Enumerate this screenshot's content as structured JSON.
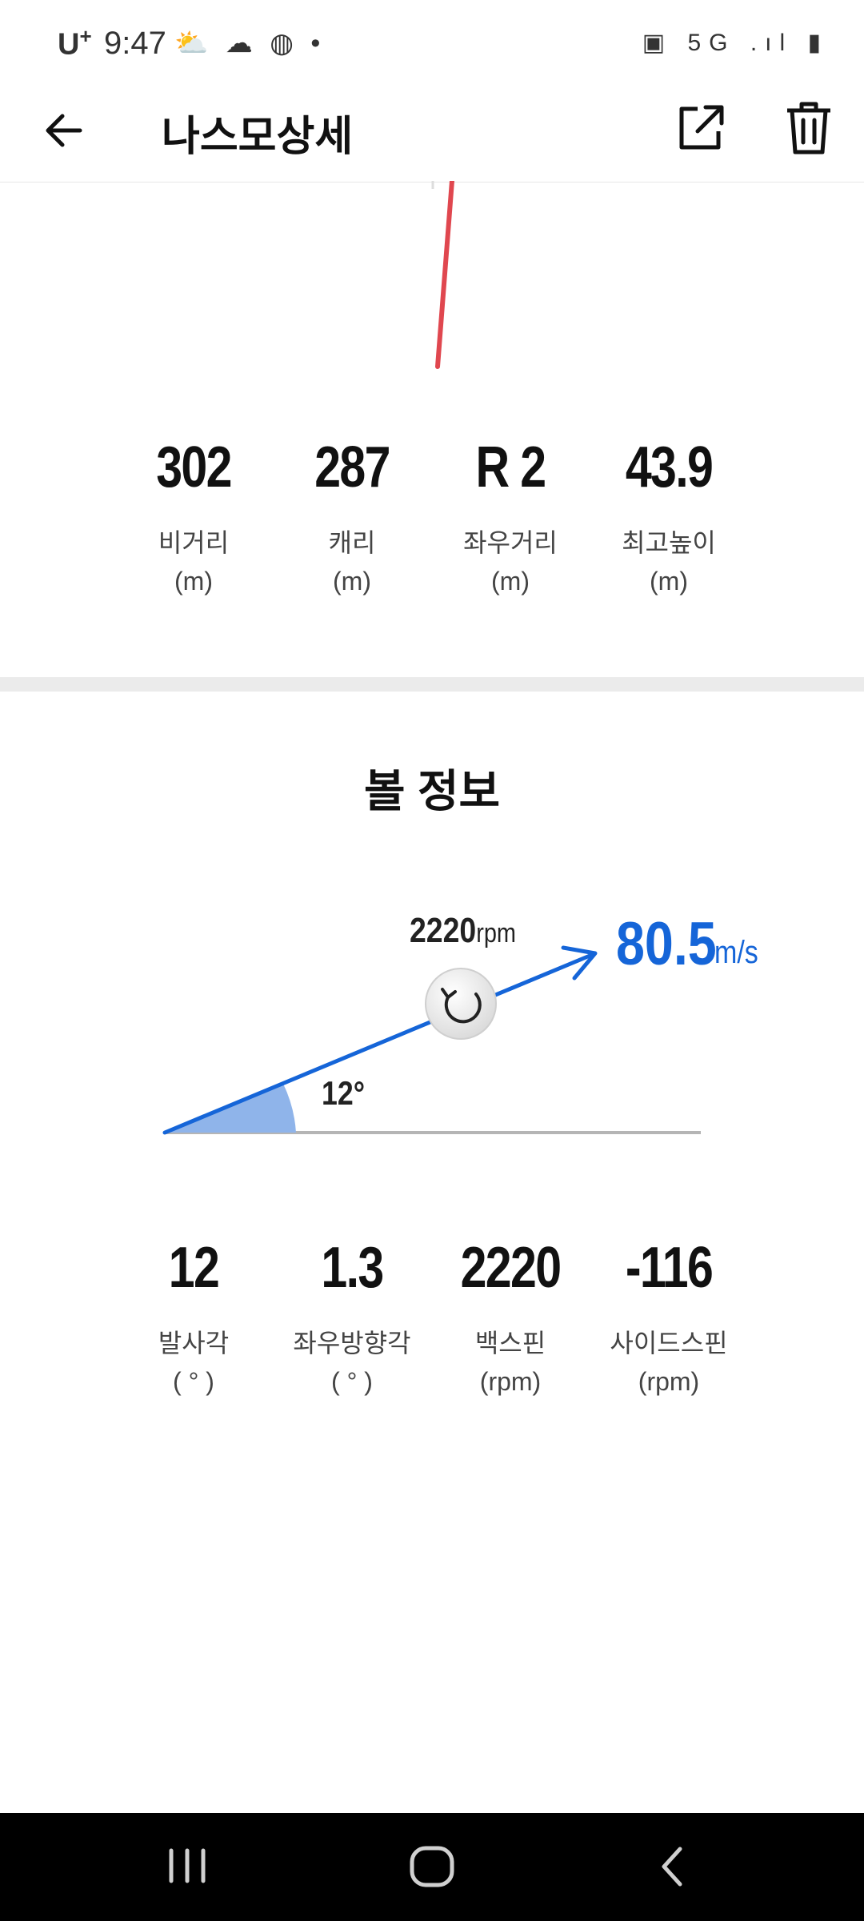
{
  "status_bar": {
    "carrier": "U",
    "carrier_plus": "+",
    "time": "9:47",
    "left_icons": "⛅ ☁ ◍ •",
    "right_icons": "▣ 5G .ıl ▮"
  },
  "header": {
    "title": "나스모상세",
    "back_icon": "arrow-left-icon",
    "share_icon": "share-icon",
    "delete_icon": "trash-icon"
  },
  "distance_stats": [
    {
      "value": "302",
      "label": "비거리",
      "unit": "(m)"
    },
    {
      "value": "287",
      "label": "캐리",
      "unit": "(m)"
    },
    {
      "value": "R 2",
      "label": "좌우거리",
      "unit": "(m)"
    },
    {
      "value": "43.9",
      "label": "최고높이",
      "unit": "(m)"
    }
  ],
  "ball_info": {
    "title": "볼 정보",
    "spin_value": "2220",
    "spin_unit": "rpm",
    "speed_value": "80.5",
    "speed_unit": "m/s",
    "launch_angle": "12°",
    "colors": {
      "accent": "#1565d8",
      "angle_fill": "#8fb4ea",
      "trajectory_line": "#e0474f"
    }
  },
  "ball_stats": [
    {
      "value": "12",
      "label": "발사각",
      "unit": "( ° )"
    },
    {
      "value": "1.3",
      "label": "좌우방향각",
      "unit": "( ° )"
    },
    {
      "value": "2220",
      "label": "백스핀",
      "unit": "(rpm)"
    },
    {
      "value": "-116",
      "label": "사이드스핀",
      "unit": "(rpm)"
    }
  ],
  "nav_bar": {
    "recent_icon": "recent-apps-icon",
    "home_icon": "home-icon",
    "back_icon": "nav-back-icon"
  }
}
